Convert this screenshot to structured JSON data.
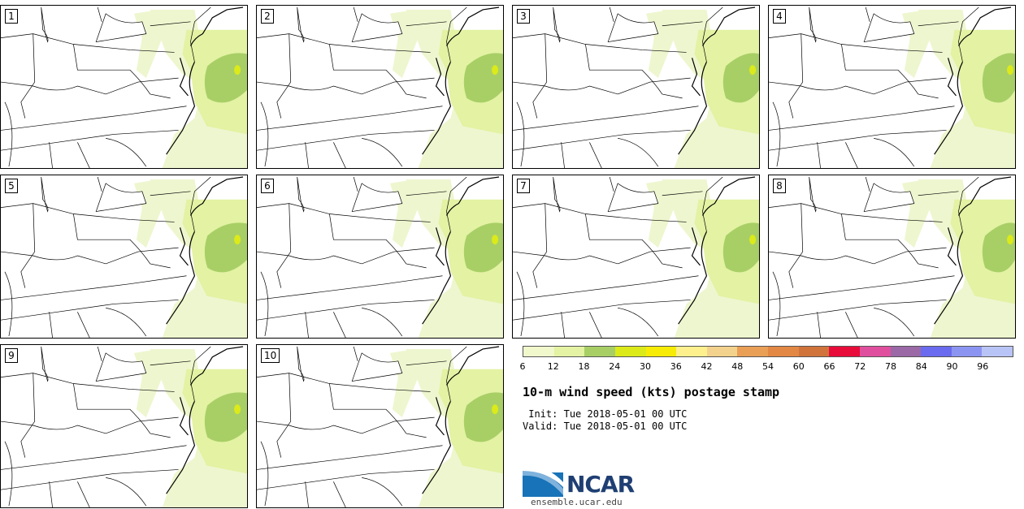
{
  "title": "10-m wind speed (kts) postage stamp",
  "init_label": " Init:",
  "init_value": "Tue 2018-05-01 00 UTC",
  "valid_label": "Valid:",
  "valid_value": "Tue 2018-05-01 00 UTC",
  "logo_text": "NCAR",
  "site": "ensemble.ucar.edu",
  "panels": [
    "1",
    "2",
    "3",
    "4",
    "5",
    "6",
    "7",
    "8",
    "9",
    "10"
  ],
  "colorbar": {
    "ticks": [
      "6",
      "12",
      "18",
      "24",
      "30",
      "36",
      "42",
      "48",
      "54",
      "60",
      "66",
      "72",
      "78",
      "84",
      "90",
      "96"
    ],
    "colors": [
      "#f0f8cc",
      "#e3f2a3",
      "#a8cf66",
      "#dcea1a",
      "#f7ec05",
      "#fff08e",
      "#f3d28e",
      "#e99f55",
      "#e28744",
      "#d0743c",
      "#e80c3a",
      "#e04f9e",
      "#9a69a6",
      "#6a6bee",
      "#8c94f2",
      "#b9c4f6"
    ]
  },
  "field_colors": {
    "light": "#eef6cf",
    "mid": "#e3f2a3",
    "strong": "#a8cf66",
    "peak": "#dcea1a"
  }
}
